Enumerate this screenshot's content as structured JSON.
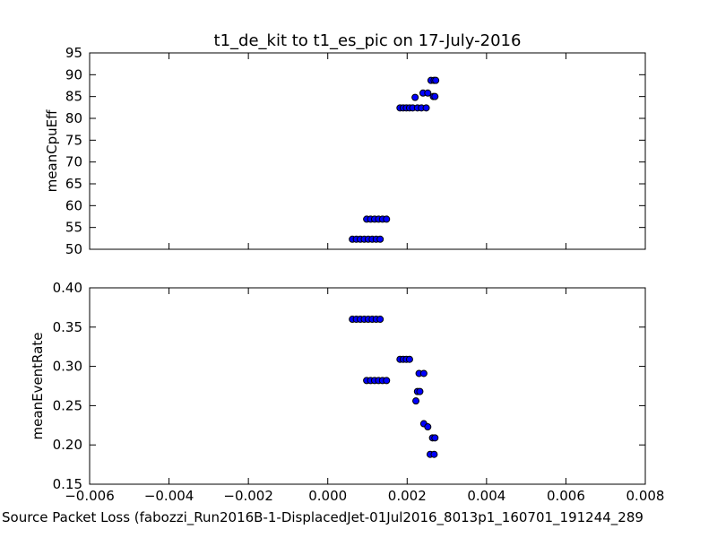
{
  "chart_data": [
    {
      "type": "scatter",
      "title": "t1_de_kit to t1_es_pic on 17-July-2016",
      "ylabel": "meanCpuEff",
      "xlim": [
        -0.006,
        0.008
      ],
      "ylim": [
        50,
        95
      ],
      "y_ticks": [
        "50",
        "55",
        "60",
        "65",
        "70",
        "75",
        "80",
        "85",
        "90",
        "95"
      ],
      "series": [
        {
          "points": [
            [
              0.00062,
              52.3
            ],
            [
              0.00072,
              52.3
            ],
            [
              0.00082,
              52.3
            ],
            [
              0.00092,
              52.3
            ],
            [
              0.00102,
              52.3
            ],
            [
              0.00112,
              52.3
            ],
            [
              0.00122,
              52.3
            ],
            [
              0.00132,
              52.3
            ],
            [
              0.00098,
              56.9
            ],
            [
              0.00108,
              56.9
            ],
            [
              0.00118,
              56.9
            ],
            [
              0.00128,
              56.9
            ],
            [
              0.00138,
              56.9
            ],
            [
              0.00148,
              56.9
            ],
            [
              0.00182,
              82.4
            ],
            [
              0.0019,
              82.4
            ],
            [
              0.00198,
              82.4
            ],
            [
              0.00206,
              82.4
            ],
            [
              0.00214,
              82.4
            ],
            [
              0.00226,
              82.4
            ],
            [
              0.00236,
              82.4
            ],
            [
              0.00248,
              82.4
            ],
            [
              0.0022,
              84.8
            ],
            [
              0.0024,
              85.8
            ],
            [
              0.00252,
              85.8
            ],
            [
              0.00266,
              85.0
            ],
            [
              0.0027,
              85.0
            ],
            [
              0.0026,
              88.7
            ],
            [
              0.00268,
              88.7
            ],
            [
              0.00272,
              88.7
            ]
          ]
        }
      ]
    },
    {
      "type": "scatter",
      "ylabel": "meanEventRate",
      "xlabel": "Source Packet Loss (fabozzi_Run2016B-1-DisplacedJet-01Jul2016_8013p1_160701_191244_289",
      "xlim": [
        -0.006,
        0.008
      ],
      "ylim": [
        0.15,
        0.4
      ],
      "x_ticks": [
        "−0.006",
        "−0.004",
        "−0.002",
        "0.000",
        "0.002",
        "0.004",
        "0.006",
        "0.008"
      ],
      "y_ticks": [
        "0.15",
        "0.20",
        "0.25",
        "0.30",
        "0.35",
        "0.40"
      ],
      "series": [
        {
          "points": [
            [
              0.00062,
              0.36
            ],
            [
              0.00072,
              0.36
            ],
            [
              0.00082,
              0.36
            ],
            [
              0.00092,
              0.36
            ],
            [
              0.00102,
              0.36
            ],
            [
              0.00112,
              0.36
            ],
            [
              0.00122,
              0.36
            ],
            [
              0.00132,
              0.36
            ],
            [
              0.00098,
              0.282
            ],
            [
              0.00108,
              0.282
            ],
            [
              0.00118,
              0.282
            ],
            [
              0.00128,
              0.282
            ],
            [
              0.00138,
              0.282
            ],
            [
              0.00148,
              0.282
            ],
            [
              0.00182,
              0.309
            ],
            [
              0.0019,
              0.309
            ],
            [
              0.00198,
              0.309
            ],
            [
              0.00206,
              0.309
            ],
            [
              0.0023,
              0.291
            ],
            [
              0.00242,
              0.291
            ],
            [
              0.00226,
              0.268
            ],
            [
              0.00232,
              0.268
            ],
            [
              0.00222,
              0.256
            ],
            [
              0.00242,
              0.227
            ],
            [
              0.00252,
              0.223
            ],
            [
              0.00264,
              0.209
            ],
            [
              0.0027,
              0.209
            ],
            [
              0.00258,
              0.188
            ],
            [
              0.00268,
              0.188
            ]
          ]
        }
      ]
    }
  ]
}
